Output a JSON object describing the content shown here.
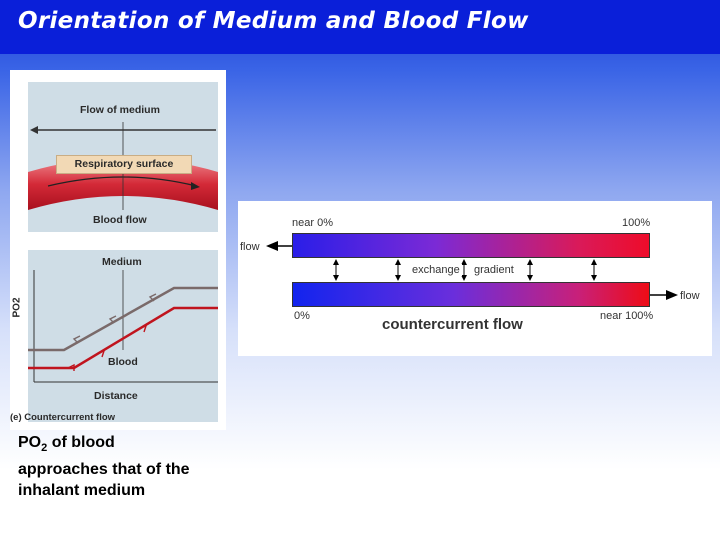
{
  "header": {
    "title": "Orientation of Medium and Blood Flow"
  },
  "left_figure": {
    "top": {
      "flow_of_medium": "Flow of medium",
      "respiratory_surface": "Respiratory surface",
      "blood_flow": "Blood flow"
    },
    "bottom": {
      "medium": "Medium",
      "blood": "Blood",
      "distance": "Distance",
      "po2_axis": "PO2",
      "caption": "(e)  Countercurrent flow"
    }
  },
  "left_text": {
    "line1_prefix": "PO",
    "line1_sub": "2",
    "line1_suffix": " of blood",
    "line2": "approaches that of the",
    "line3": "inhalant medium"
  },
  "right_figure": {
    "top_left": "near 0%",
    "top_right": "100%",
    "flow_left": "flow",
    "exchange": "exchange",
    "gradient": "gradient",
    "flow_right": "flow",
    "bottom_left": "0%",
    "bottom_right": "near 100%",
    "title": "countercurrent flow"
  },
  "colors": {
    "title_bar": "#0a1fd9",
    "medium_line": "#7a6a6a",
    "blood_line": "#c0141e",
    "bar_high": "#ee0c2a",
    "bar_low": "#1a22ee"
  }
}
